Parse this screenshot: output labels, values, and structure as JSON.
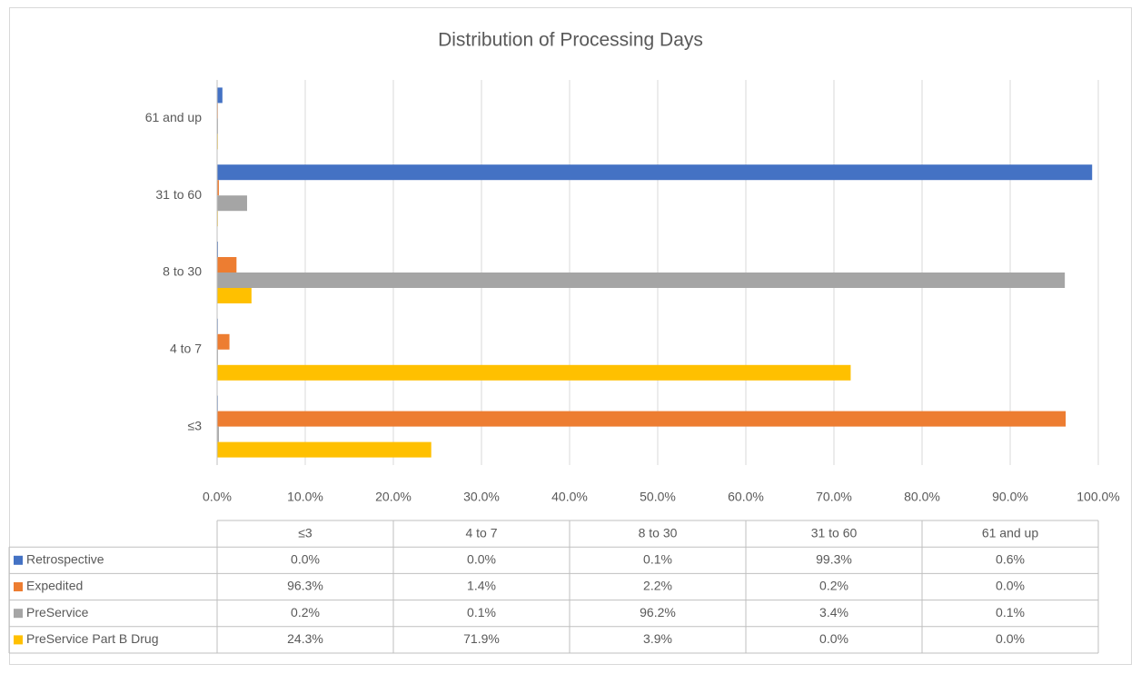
{
  "chart_data": {
    "type": "bar",
    "orientation": "horizontal",
    "title": "Distribution of Processing Days",
    "categories": [
      "≤3",
      "4 to 7",
      "8 to 30",
      "31 to 60",
      "61 and up"
    ],
    "series": [
      {
        "name": "Retrospective",
        "color": "#4472c4",
        "values": [
          0.0,
          0.0,
          0.1,
          99.3,
          0.6
        ],
        "value_labels": [
          "0.0%",
          "0.0%",
          "0.1%",
          "99.3%",
          "0.6%"
        ]
      },
      {
        "name": "Expedited",
        "color": "#ed7d31",
        "values": [
          96.3,
          1.4,
          2.2,
          0.2,
          0.0
        ],
        "value_labels": [
          "96.3%",
          "1.4%",
          "2.2%",
          "0.2%",
          "0.0%"
        ]
      },
      {
        "name": "PreService",
        "color": "#a5a5a5",
        "values": [
          0.2,
          0.1,
          96.2,
          3.4,
          0.1
        ],
        "value_labels": [
          "0.2%",
          "0.1%",
          "96.2%",
          "3.4%",
          "0.1%"
        ]
      },
      {
        "name": "PreService Part B Drug",
        "color": "#ffc000",
        "values": [
          24.3,
          71.9,
          3.9,
          0.0,
          0.0
        ],
        "value_labels": [
          "24.3%",
          "71.9%",
          "3.9%",
          "0.0%",
          "0.0%"
        ]
      }
    ],
    "xlim": [
      0,
      100
    ],
    "xticks": [
      {
        "value": 0,
        "label": "0.0%"
      },
      {
        "value": 10,
        "label": "10.0%"
      },
      {
        "value": 20,
        "label": "20.0%"
      },
      {
        "value": 30,
        "label": "30.0%"
      },
      {
        "value": 40,
        "label": "40.0%"
      },
      {
        "value": 50,
        "label": "50.0%"
      },
      {
        "value": 60,
        "label": "60.0%"
      },
      {
        "value": 70,
        "label": "70.0%"
      },
      {
        "value": 80,
        "label": "80.0%"
      },
      {
        "value": 90,
        "label": "90.0%"
      },
      {
        "value": 100,
        "label": "100.0%"
      }
    ],
    "grid": true,
    "data_table": true
  }
}
